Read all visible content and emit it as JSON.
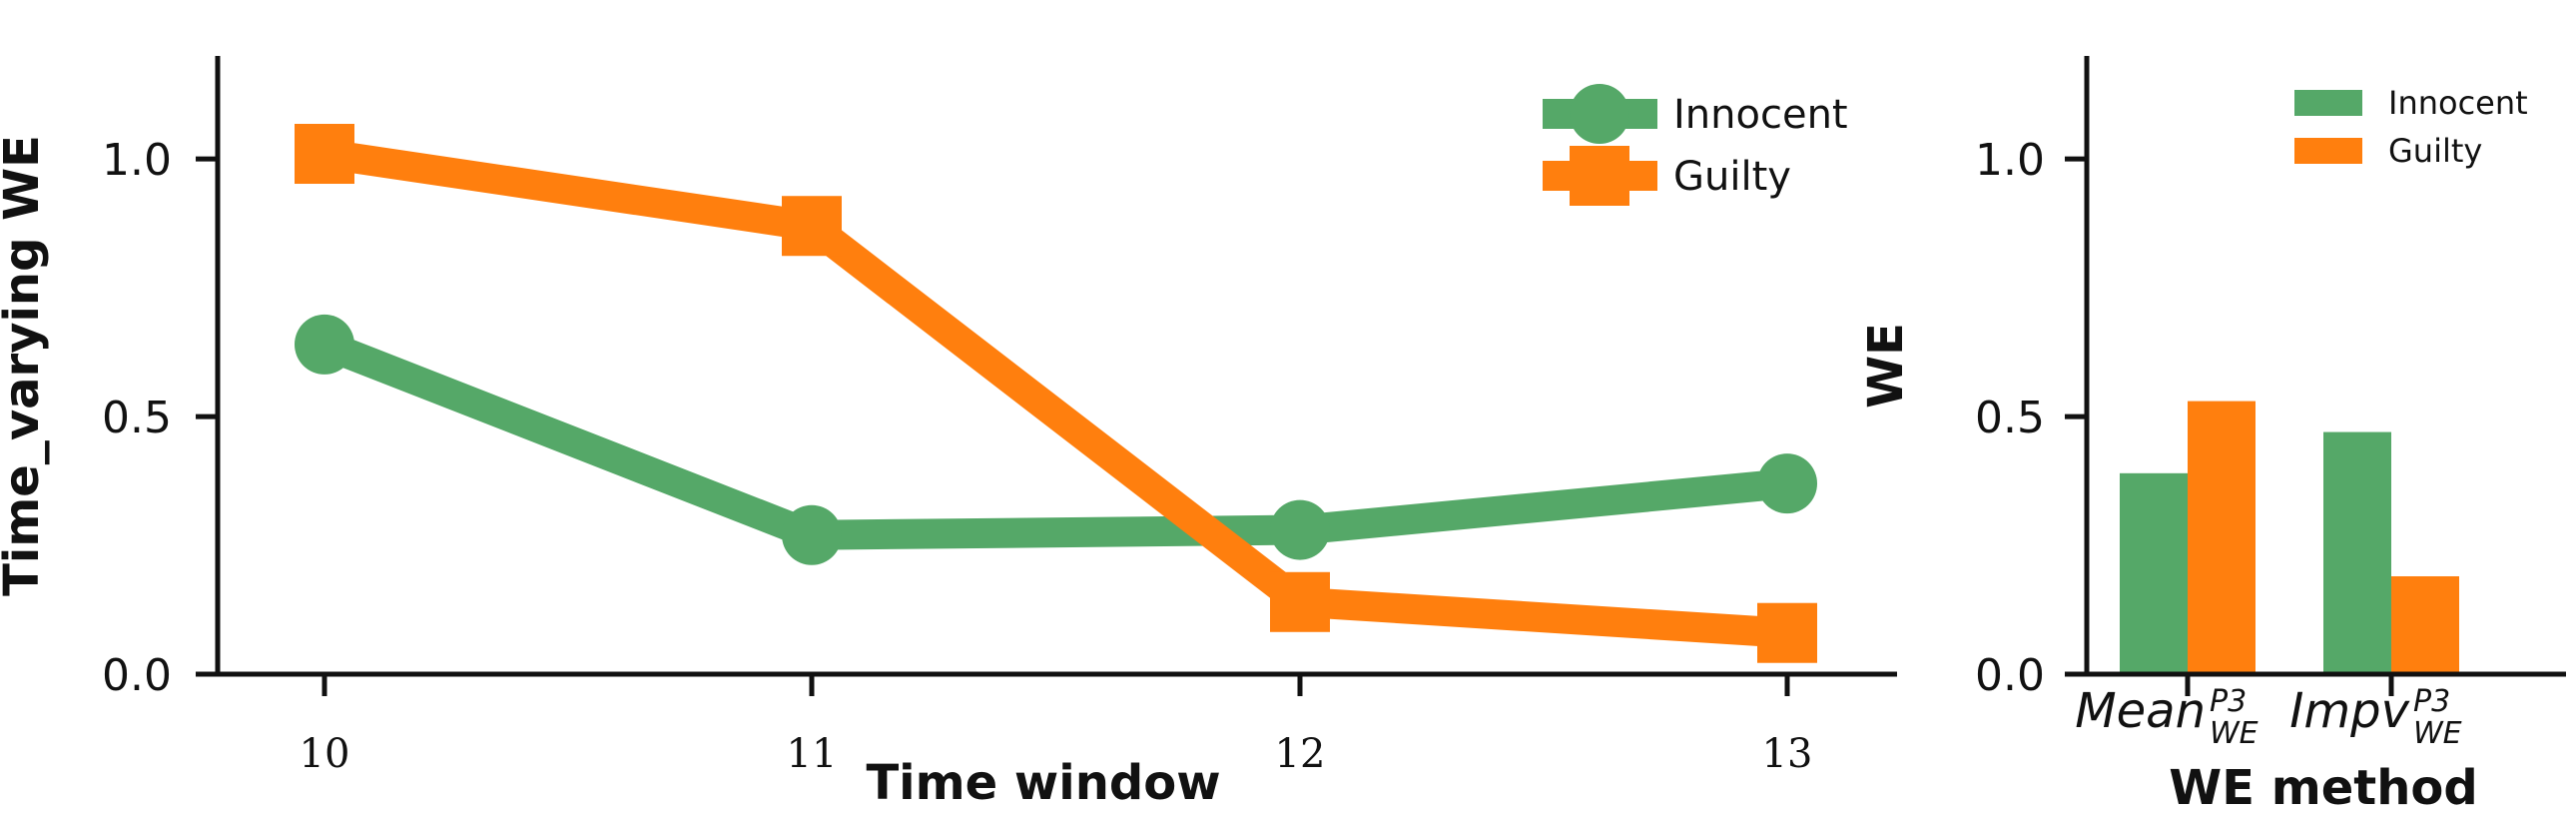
{
  "chart_data": [
    {
      "type": "line",
      "xlabel": "Time window",
      "ylabel": "Time_varying WE",
      "x": [
        10,
        11,
        12,
        13
      ],
      "ylim": [
        0,
        1.2
      ],
      "yticks": [
        "0.0",
        "0.5",
        "1.0"
      ],
      "xticks": [
        "10",
        "11",
        "12",
        "13"
      ],
      "grid": false,
      "legend_position": "top-right",
      "series": [
        {
          "name": "Innocent",
          "values": [
            0.64,
            0.27,
            0.28,
            0.37
          ],
          "color": "#55a868",
          "marker": "circle"
        },
        {
          "name": "Guilty",
          "values": [
            1.01,
            0.87,
            0.14,
            0.08
          ],
          "color": "#ff7f0e",
          "marker": "square"
        }
      ]
    },
    {
      "type": "bar",
      "xlabel": "WE method",
      "ylabel": "WE",
      "ylim": [
        0,
        1.2
      ],
      "yticks": [
        "0.0",
        "0.5",
        "1.0"
      ],
      "grid": false,
      "legend_position": "top-right",
      "categories": [
        {
          "base": "Mean",
          "sup": "P3",
          "sub": "WE"
        },
        {
          "base": "Impv",
          "sup": "P3",
          "sub": "WE"
        }
      ],
      "series": [
        {
          "name": "Innocent",
          "values": [
            0.39,
            0.47
          ],
          "color": "#55a868"
        },
        {
          "name": "Guilty",
          "values": [
            0.53,
            0.19
          ],
          "color": "#ff7f0e"
        }
      ]
    }
  ]
}
